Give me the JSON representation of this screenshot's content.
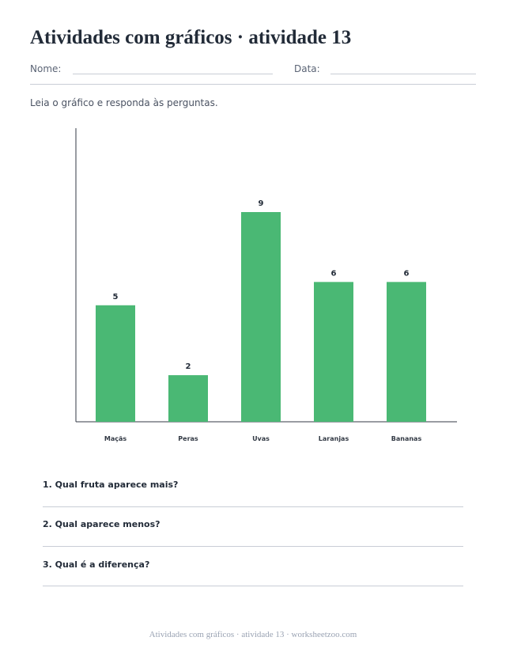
{
  "header": {
    "title": "Atividades com gráficos · atividade 13",
    "name_label": "Nome:",
    "date_label": "Data:"
  },
  "instructions": "Leia o gráfico e responda às perguntas.",
  "chart_data": {
    "type": "bar",
    "categories": [
      "Maçãs",
      "Peras",
      "Uvas",
      "Laranjas",
      "Bananas"
    ],
    "values": [
      5,
      2,
      9,
      6,
      6
    ],
    "ylim": [
      0,
      12.6
    ],
    "bar_color": "#4ab874",
    "grid": false,
    "title": "",
    "xlabel": "",
    "ylabel": ""
  },
  "questions": [
    "1. Qual fruta aparece mais?",
    "2. Qual aparece menos?",
    "3. Qual é a diferença?"
  ],
  "footer": "Atividades com gráficos · atividade 13 · worksheetzoo.com"
}
